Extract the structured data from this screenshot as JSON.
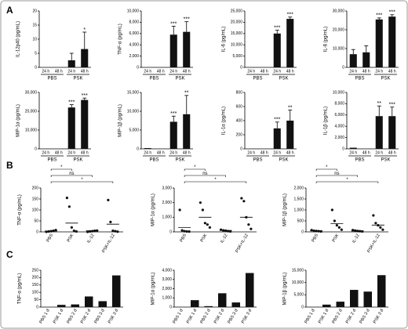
{
  "panel_labels": [
    "A",
    "B",
    "C"
  ],
  "chart_data": [
    {
      "type": "bar",
      "y_label": "IL-12p40 (pg/mL)",
      "categories": [
        "24 h",
        "48 h",
        "24 h",
        "48 h"
      ],
      "groups": [
        "PBS",
        "PSK"
      ],
      "color": "#111111",
      "values": [
        0,
        0,
        2.5,
        6.5
      ],
      "errors": [
        null,
        null,
        2.5,
        6
      ],
      "annotations": [
        null,
        null,
        null,
        "*"
      ],
      "ylim": [
        0,
        20
      ],
      "yticks": [
        0,
        5,
        10,
        15,
        20
      ]
    },
    {
      "type": "bar",
      "y_label": "TNF-α (pg/mL)",
      "categories": [
        "24 h",
        "48 h",
        "24 h",
        "48 h"
      ],
      "groups": [
        "PBS",
        "PSK"
      ],
      "color": "#111111",
      "values": [
        0,
        0,
        5800,
        6300
      ],
      "errors": [
        null,
        null,
        1500,
        1800
      ],
      "annotations": [
        null,
        null,
        "***",
        "***"
      ],
      "ylim": [
        0,
        10000
      ],
      "yticks": [
        0,
        {
          "value": 2000,
          "label": "2,000"
        },
        {
          "value": 4000,
          "label": "4,000"
        },
        {
          "value": 6000,
          "label": "6,000"
        },
        {
          "value": 8000,
          "label": "8,000"
        },
        {
          "value": 10000,
          "label": "10,000"
        }
      ]
    },
    {
      "type": "bar",
      "y_label": "IL-6 (pg/mL)",
      "categories": [
        "24 h",
        "48 h",
        "24 h",
        "48 h"
      ],
      "groups": [
        "PBS",
        "PSK"
      ],
      "color": "#111111",
      "values": [
        0,
        0,
        15000,
        21500
      ],
      "errors": [
        null,
        null,
        1500,
        800
      ],
      "annotations": [
        null,
        null,
        "***",
        "***"
      ],
      "ylim": [
        0,
        25000
      ],
      "yticks": [
        0,
        {
          "value": 5000,
          "label": "5,000"
        },
        {
          "value": 10000,
          "label": "10,000"
        },
        {
          "value": 15000,
          "label": "15,000"
        },
        {
          "value": 20000,
          "label": "20,000"
        },
        {
          "value": 25000,
          "label": "25,000"
        }
      ]
    },
    {
      "type": "bar",
      "y_label": "IL-8 (pg/mL)",
      "categories": [
        "24 h",
        "48 h",
        "24 h",
        "48 h"
      ],
      "groups": [
        "PBS",
        "PSK"
      ],
      "color": "#111111",
      "values": [
        7000,
        8000,
        25500,
        27000
      ],
      "errors": [
        2500,
        3500,
        800,
        1000
      ],
      "annotations": [
        null,
        null,
        "***",
        "***"
      ],
      "ylim": [
        0,
        30000
      ],
      "yticks": [
        0,
        {
          "value": 10000,
          "label": "10,000"
        },
        {
          "value": 20000,
          "label": "20,000"
        },
        {
          "value": 30000,
          "label": "30,000"
        }
      ]
    },
    {
      "type": "bar",
      "y_label": "MIP-1α (pg/mL)",
      "categories": [
        "24 h",
        "48 h",
        "24 h",
        "48 h"
      ],
      "groups": [
        "PBS",
        "PSK"
      ],
      "color": "#111111",
      "values": [
        0,
        0,
        22000,
        26000
      ],
      "errors": [
        null,
        null,
        1500,
        1000
      ],
      "annotations": [
        null,
        null,
        "***",
        "***"
      ],
      "ylim": [
        0,
        30000
      ],
      "yticks": [
        0,
        {
          "value": 10000,
          "label": "10,000"
        },
        {
          "value": 20000,
          "label": "20,000"
        },
        {
          "value": 30000,
          "label": "30,000"
        }
      ]
    },
    {
      "type": "bar",
      "y_label": "MIP-1β (pg/mL)",
      "categories": [
        "24 h",
        "48 h",
        "24 h",
        "48 h"
      ],
      "groups": [
        "PBS",
        "PSK"
      ],
      "color": "#111111",
      "values": [
        200,
        0,
        7200,
        9200
      ],
      "errors": [
        null,
        null,
        1500,
        5000
      ],
      "annotations": [
        null,
        null,
        "***",
        "**"
      ],
      "ylim": [
        0,
        15000
      ],
      "yticks": [
        0,
        {
          "value": 5000,
          "label": "5,000"
        },
        {
          "value": 10000,
          "label": "10,000"
        },
        {
          "value": 15000,
          "label": "15,000"
        }
      ]
    },
    {
      "type": "bar",
      "y_label": "IL-1α (pg/mL)",
      "categories": [
        "24 h",
        "48 h",
        "24 h",
        "48 h"
      ],
      "groups": [
        "PBS",
        "PSK"
      ],
      "color": "#111111",
      "values": [
        0,
        0,
        290,
        400
      ],
      "errors": [
        null,
        null,
        90,
        150
      ],
      "annotations": [
        null,
        null,
        "***",
        "**"
      ],
      "ylim": [
        0,
        800
      ],
      "yticks": [
        0,
        200,
        400,
        600,
        800
      ]
    },
    {
      "type": "bar",
      "y_label": "IL-1β (pg/mL)",
      "categories": [
        "24 h",
        "48 h",
        "24 h",
        "48 h"
      ],
      "groups": [
        "PBS",
        "PSK"
      ],
      "color": "#111111",
      "values": [
        200,
        0,
        5800,
        5800
      ],
      "errors": [
        null,
        null,
        1800,
        1600
      ],
      "annotations": [
        null,
        null,
        "**",
        "***"
      ],
      "ylim": [
        0,
        10000
      ],
      "yticks": [
        0,
        {
          "value": 2000,
          "label": "2,000"
        },
        {
          "value": 4000,
          "label": "4,000"
        },
        {
          "value": 6000,
          "label": "6,000"
        },
        {
          "value": 8000,
          "label": "8,000"
        },
        {
          "value": 10000,
          "label": "10,000"
        }
      ]
    },
    {
      "type": "dotplot",
      "y_label": "TNF-α (pg/mL)",
      "categories": [
        "PBS",
        "PSK",
        "IL-12",
        "PSK+IL-12"
      ],
      "color": "#111111",
      "points": [
        [
          0,
          2,
          3,
          5,
          8
        ],
        [
          155,
          115,
          20,
          5,
          2
        ],
        [
          0,
          2,
          3,
          5,
          6
        ],
        [
          145,
          45,
          5,
          3,
          1
        ]
      ],
      "means": [
        4,
        40,
        5,
        35
      ],
      "brackets": [
        {
          "between": [
            0,
            1
          ],
          "label": "*"
        },
        {
          "between": [
            0,
            2
          ],
          "label": "ns"
        },
        {
          "between": [
            0,
            3
          ],
          "label": "*"
        }
      ],
      "ylim": [
        0,
        200
      ],
      "yticks": [
        0,
        50,
        100,
        150,
        200
      ]
    },
    {
      "type": "dotplot",
      "y_label": "MIP-1α (pg/mL)",
      "categories": [
        "PBS",
        "PSK",
        "IL-12",
        "PSK+IL-12"
      ],
      "color": "#111111",
      "points": [
        [
          1500,
          100,
          50,
          30,
          20
        ],
        [
          2000,
          1500,
          600,
          500,
          300
        ],
        [
          150,
          100,
          80,
          50,
          30
        ],
        [
          2300,
          2100,
          1000,
          500,
          200
        ]
      ],
      "means": [
        300,
        1000,
        100,
        1000
      ],
      "brackets": [
        {
          "between": [
            0,
            1
          ],
          "label": "*"
        },
        {
          "between": [
            0,
            2
          ],
          "label": "ns"
        },
        {
          "between": [
            0,
            3
          ],
          "label": "*"
        }
      ],
      "ylim": [
        0,
        3000
      ],
      "yticks": [
        0,
        {
          "value": 1000,
          "label": "1,000"
        },
        {
          "value": 2000,
          "label": "2,000"
        },
        {
          "value": 3000,
          "label": "3,000"
        }
      ]
    },
    {
      "type": "dotplot",
      "y_label": "MIP-1β (pg/mL)",
      "categories": [
        "PBS",
        "PSK",
        "IL-12",
        "PSK+IL-12"
      ],
      "color": "#111111",
      "points": [
        [
          80,
          50,
          40,
          30,
          20
        ],
        [
          1000,
          500,
          300,
          200,
          100
        ],
        [
          80,
          60,
          40,
          30,
          20
        ],
        [
          750,
          400,
          300,
          200,
          100
        ]
      ],
      "means": [
        50,
        380,
        40,
        310
      ],
      "brackets": [
        {
          "between": [
            0,
            1
          ],
          "label": "*"
        },
        {
          "between": [
            0,
            2
          ],
          "label": "ns"
        },
        {
          "between": [
            0,
            3
          ],
          "label": "*"
        }
      ],
      "ylim": [
        0,
        2000
      ],
      "yticks": [
        0,
        500,
        {
          "value": 1000,
          "label": "1,000"
        },
        {
          "value": 1500,
          "label": "1,500"
        },
        {
          "value": 2000,
          "label": "2,000"
        }
      ]
    },
    {
      "type": "bar",
      "y_label": "TNF-α (pg/mL)",
      "categories": [
        "PBS 1 d",
        "PSK 1 d",
        "PBS 2 d",
        "PSK 2 d",
        "PBS 3 d",
        "PSK 3 d"
      ],
      "color": "#111111",
      "values": [
        0,
        15,
        18,
        72,
        40,
        215
      ],
      "ylim": [
        0,
        250
      ],
      "yticks": [
        0,
        50,
        100,
        150,
        200,
        250
      ]
    },
    {
      "type": "bar",
      "y_label": "MIP-1α (pg/mL)",
      "categories": [
        "PBS 1 d",
        "PSK 1 d",
        "PBS 2 d",
        "PSK 2 d",
        "PBS 3 d",
        "PSK 3 d"
      ],
      "color": "#111111",
      "values": [
        0,
        750,
        100,
        1500,
        500,
        3700
      ],
      "ylim": [
        0,
        4000
      ],
      "yticks": [
        0,
        {
          "value": 1000,
          "label": "1,000"
        },
        {
          "value": 2000,
          "label": "2,000"
        },
        {
          "value": 3000,
          "label": "3,000"
        },
        {
          "value": 4000,
          "label": "4,000"
        }
      ]
    },
    {
      "type": "bar",
      "y_label": "MIP-1β (pg/mL)",
      "categories": [
        "PBS 1 d",
        "PSK 1 d",
        "PBS 2 d",
        "PSK 2 d",
        "PBS 3 d",
        "PSK 3 d"
      ],
      "color": "#111111",
      "values": [
        0,
        1000,
        2200,
        7000,
        6300,
        13000
      ],
      "ylim": [
        0,
        15000
      ],
      "yticks": [
        0,
        {
          "value": 5000,
          "label": "5,000"
        },
        {
          "value": 10000,
          "label": "10,000"
        },
        {
          "value": 15000,
          "label": "15,000"
        }
      ]
    }
  ]
}
